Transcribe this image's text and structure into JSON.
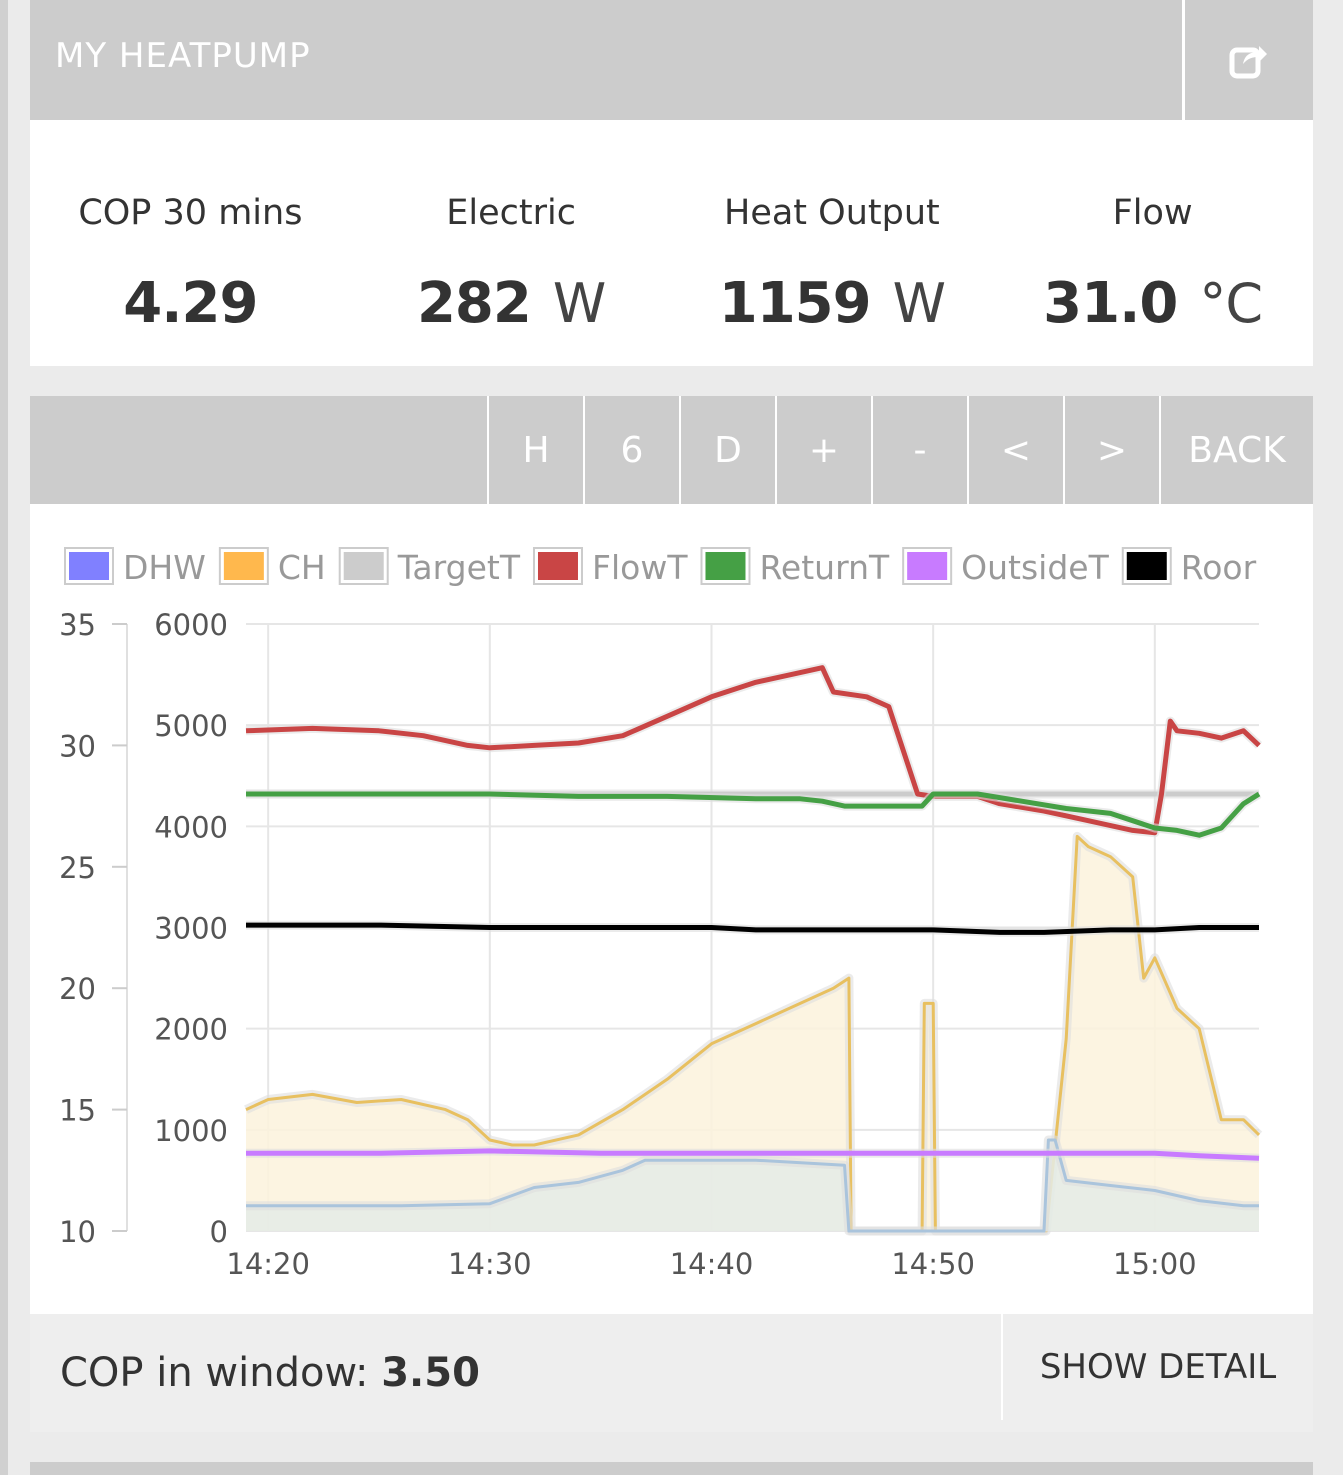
{
  "header": {
    "title": "MY HEATPUMP"
  },
  "stats": [
    {
      "label": "COP 30 mins",
      "value": "4.29",
      "unit": ""
    },
    {
      "label": "Electric",
      "value": "282",
      "unit": "W"
    },
    {
      "label": "Heat Output",
      "value": "1159",
      "unit": "W"
    },
    {
      "label": "Flow",
      "value": "31.0",
      "unit": "°C"
    }
  ],
  "toolbar": {
    "buttons": [
      "H",
      "6",
      "D",
      "+",
      "-",
      "<",
      ">",
      "BACK"
    ]
  },
  "footer": {
    "cop_label": "COP in window:",
    "cop_value": "3.50",
    "detail_button": "SHOW DETAIL"
  },
  "chart_data": {
    "type": "line",
    "legend": [
      {
        "name": "DHW",
        "color": "#8080ff"
      },
      {
        "name": "CH",
        "color": "#ffb84d"
      },
      {
        "name": "TargetT",
        "color": "#cccccc"
      },
      {
        "name": "FlowT",
        "color": "#c94545"
      },
      {
        "name": "ReturnT",
        "color": "#45a045"
      },
      {
        "name": "OutsideT",
        "color": "#c87bff"
      },
      {
        "name": "Roor",
        "color": "#000000"
      }
    ],
    "x_ticks": [
      "14:20",
      "14:30",
      "14:40",
      "14:50",
      "15:00"
    ],
    "x_range_minutes": [
      -1,
      44.7
    ],
    "y_left_ticks": [
      10,
      15,
      20,
      25,
      30,
      35
    ],
    "y_left_range": [
      10,
      35
    ],
    "y_right_ticks": [
      0,
      1000,
      2000,
      3000,
      4000,
      5000,
      6000
    ],
    "y_right_range": [
      0,
      6000
    ],
    "grid": true,
    "series": [
      {
        "name": "CH",
        "axis": "right",
        "color": "#e8c060",
        "fill": "#fbf2dc",
        "points": [
          [
            -1,
            1200
          ],
          [
            0,
            1300
          ],
          [
            2,
            1350
          ],
          [
            4,
            1270
          ],
          [
            6,
            1300
          ],
          [
            8,
            1200
          ],
          [
            9,
            1100
          ],
          [
            10,
            900
          ],
          [
            11,
            850
          ],
          [
            12,
            850
          ],
          [
            14,
            950
          ],
          [
            16,
            1200
          ],
          [
            18,
            1500
          ],
          [
            20,
            1850
          ],
          [
            22,
            2050
          ],
          [
            24,
            2250
          ],
          [
            25.5,
            2400
          ],
          [
            26.2,
            2500
          ],
          [
            26.3,
            0
          ],
          [
            29.5,
            0
          ],
          [
            29.6,
            2250
          ],
          [
            30,
            2250
          ],
          [
            30.1,
            0
          ],
          [
            35,
            0
          ],
          [
            35.1,
            0
          ],
          [
            36,
            1900
          ],
          [
            36.5,
            3900
          ],
          [
            37,
            3800
          ],
          [
            38,
            3700
          ],
          [
            39,
            3500
          ],
          [
            39.5,
            2500
          ],
          [
            40,
            2700
          ],
          [
            41,
            2200
          ],
          [
            42,
            2000
          ],
          [
            43,
            1100
          ],
          [
            44,
            1100
          ],
          [
            44.7,
            950
          ]
        ]
      },
      {
        "name": "DHW",
        "axis": "right",
        "color": "#aac4dc",
        "fill": "#e4ebe6",
        "points": [
          [
            -1,
            250
          ],
          [
            2,
            250
          ],
          [
            6,
            250
          ],
          [
            10,
            270
          ],
          [
            12,
            430
          ],
          [
            14,
            480
          ],
          [
            16,
            600
          ],
          [
            17,
            700
          ],
          [
            18,
            700
          ],
          [
            22,
            700
          ],
          [
            26,
            650
          ],
          [
            26.2,
            0
          ],
          [
            35,
            0
          ],
          [
            35.2,
            900
          ],
          [
            35.5,
            900
          ],
          [
            36,
            500
          ],
          [
            38,
            450
          ],
          [
            40,
            400
          ],
          [
            42,
            300
          ],
          [
            44,
            250
          ],
          [
            44.7,
            250
          ]
        ]
      },
      {
        "name": "TargetT",
        "axis": "left",
        "color": "#cccccc",
        "points": [
          [
            -1,
            28.0
          ],
          [
            44.7,
            28.0
          ]
        ]
      },
      {
        "name": "FlowT",
        "axis": "left",
        "color": "#c94545",
        "points": [
          [
            -1,
            30.6
          ],
          [
            2,
            30.7
          ],
          [
            5,
            30.6
          ],
          [
            7,
            30.4
          ],
          [
            9,
            30.0
          ],
          [
            10,
            29.9
          ],
          [
            12,
            30.0
          ],
          [
            14,
            30.1
          ],
          [
            16,
            30.4
          ],
          [
            18,
            31.2
          ],
          [
            20,
            32.0
          ],
          [
            22,
            32.6
          ],
          [
            24,
            33.0
          ],
          [
            25,
            33.2
          ],
          [
            25.5,
            32.2
          ],
          [
            27,
            32.0
          ],
          [
            28,
            31.6
          ],
          [
            29.3,
            28.0
          ],
          [
            30,
            27.9
          ],
          [
            32,
            27.9
          ],
          [
            33,
            27.6
          ],
          [
            35,
            27.3
          ],
          [
            37,
            26.9
          ],
          [
            39,
            26.5
          ],
          [
            40,
            26.4
          ],
          [
            40.3,
            28.0
          ],
          [
            40.7,
            31.0
          ],
          [
            41,
            30.6
          ],
          [
            42,
            30.5
          ],
          [
            43,
            30.3
          ],
          [
            44,
            30.6
          ],
          [
            44.7,
            30.0
          ]
        ]
      },
      {
        "name": "ReturnT",
        "axis": "left",
        "color": "#45a045",
        "points": [
          [
            -1,
            28.0
          ],
          [
            4,
            28.0
          ],
          [
            10,
            28.0
          ],
          [
            14,
            27.9
          ],
          [
            18,
            27.9
          ],
          [
            22,
            27.8
          ],
          [
            24,
            27.8
          ],
          [
            25,
            27.7
          ],
          [
            26,
            27.5
          ],
          [
            28,
            27.5
          ],
          [
            29.5,
            27.5
          ],
          [
            30,
            28.0
          ],
          [
            32,
            28.0
          ],
          [
            34,
            27.7
          ],
          [
            36,
            27.4
          ],
          [
            38,
            27.2
          ],
          [
            40,
            26.6
          ],
          [
            41,
            26.5
          ],
          [
            42,
            26.3
          ],
          [
            43,
            26.6
          ],
          [
            44,
            27.6
          ],
          [
            44.7,
            28.0
          ]
        ]
      },
      {
        "name": "OutsideT",
        "axis": "left",
        "color": "#c87bff",
        "points": [
          [
            -1,
            13.2
          ],
          [
            5,
            13.2
          ],
          [
            10,
            13.3
          ],
          [
            15,
            13.2
          ],
          [
            20,
            13.2
          ],
          [
            25,
            13.2
          ],
          [
            30,
            13.2
          ],
          [
            35,
            13.2
          ],
          [
            40,
            13.2
          ],
          [
            42,
            13.1
          ],
          [
            44.7,
            13.0
          ]
        ]
      },
      {
        "name": "Roor",
        "axis": "left",
        "color": "#000000",
        "points": [
          [
            -1,
            22.6
          ],
          [
            5,
            22.6
          ],
          [
            10,
            22.5
          ],
          [
            15,
            22.5
          ],
          [
            20,
            22.5
          ],
          [
            22,
            22.4
          ],
          [
            25,
            22.4
          ],
          [
            30,
            22.4
          ],
          [
            33,
            22.3
          ],
          [
            35,
            22.3
          ],
          [
            38,
            22.4
          ],
          [
            40,
            22.4
          ],
          [
            42,
            22.5
          ],
          [
            44.7,
            22.5
          ]
        ]
      }
    ]
  }
}
